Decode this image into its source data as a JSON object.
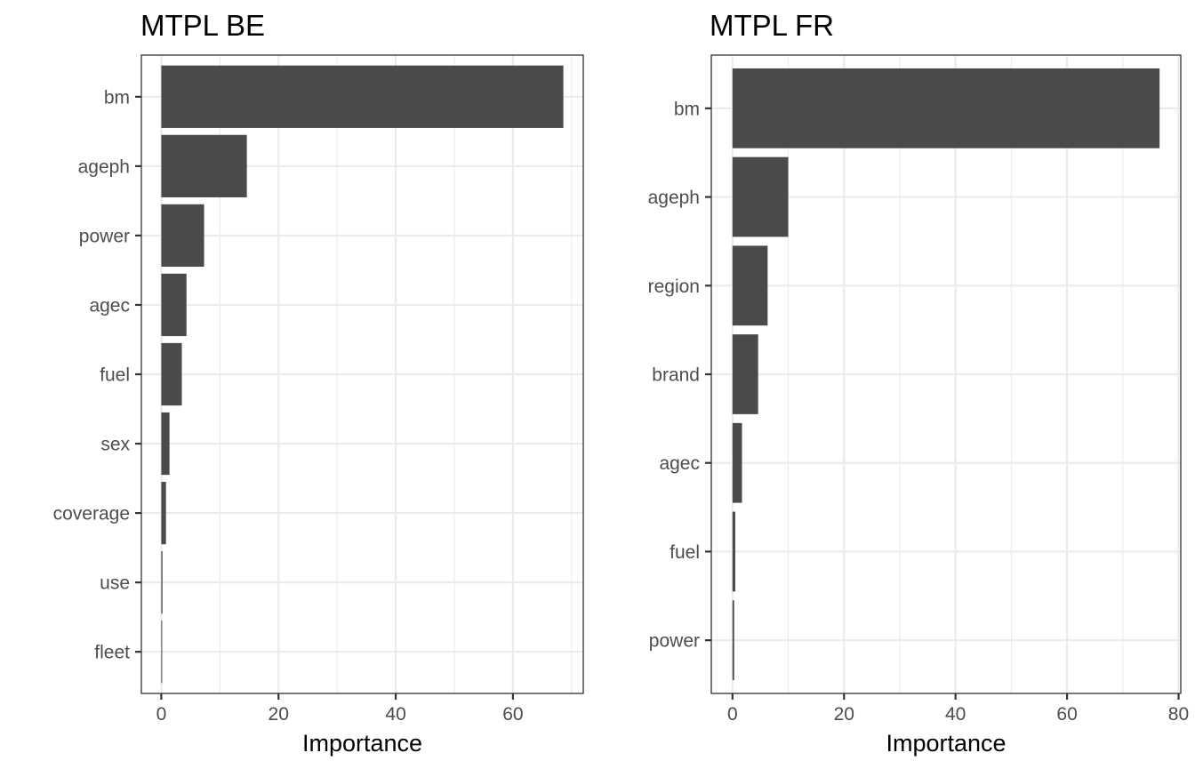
{
  "chart_data": [
    {
      "type": "bar",
      "orientation": "horizontal",
      "title": "MTPL BE",
      "xlabel": "Importance",
      "ylabel": "",
      "categories": [
        "bm",
        "ageph",
        "power",
        "agec",
        "fuel",
        "sex",
        "coverage",
        "use",
        "fleet"
      ],
      "values": [
        68.6,
        14.6,
        7.3,
        4.3,
        3.5,
        1.4,
        0.8,
        0.2,
        0.1
      ],
      "xlim": [
        -3.4,
        72.0
      ],
      "xticks": [
        0,
        20,
        40,
        60
      ],
      "xtick_labels": [
        "0",
        "20",
        "40",
        "60"
      ],
      "bar_color": "#4a4a4a",
      "grid": true
    },
    {
      "type": "bar",
      "orientation": "horizontal",
      "title": "MTPL FR",
      "xlabel": "Importance",
      "ylabel": "",
      "categories": [
        "bm",
        "ageph",
        "region",
        "brand",
        "agec",
        "fuel",
        "power"
      ],
      "values": [
        76.6,
        10.0,
        6.3,
        4.6,
        1.7,
        0.5,
        0.3
      ],
      "xlim": [
        -3.8,
        80.4
      ],
      "xticks": [
        0,
        20,
        40,
        60,
        80
      ],
      "xtick_labels": [
        "0",
        "20",
        "40",
        "60",
        "80"
      ],
      "bar_color": "#4a4a4a",
      "grid": true
    }
  ]
}
